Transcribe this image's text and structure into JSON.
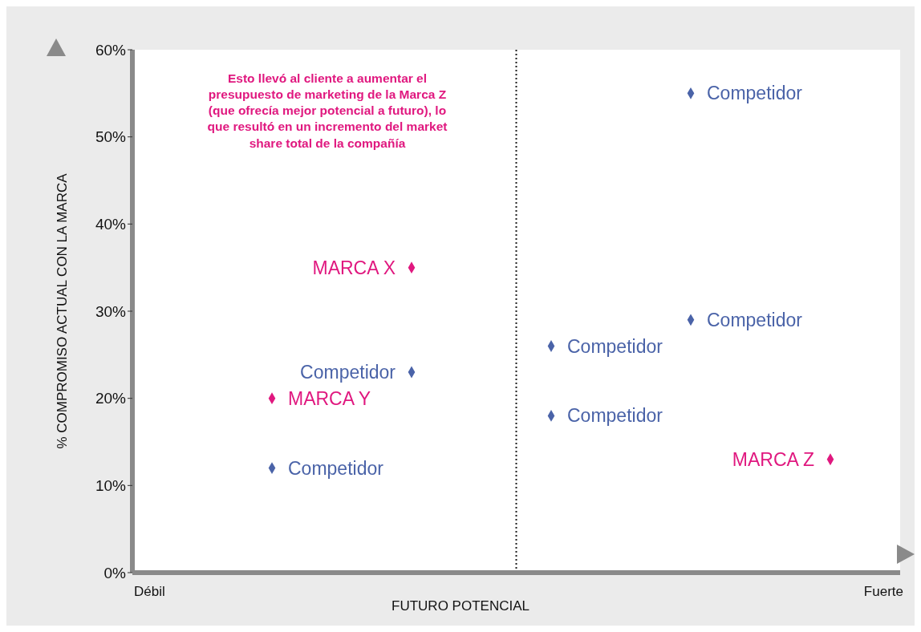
{
  "chart_data": {
    "type": "scatter",
    "ylabel": "% COMPROMISO ACTUAL  CON LA MARCA",
    "xlabel": "FUTURO POTENCIAL",
    "marker": "diamond",
    "grid": false,
    "legend": false,
    "categories": [
      null,
      null,
      null,
      null,
      null
    ],
    "ylim": [
      0,
      60
    ],
    "yticks": [
      {
        "value": 0,
        "label": "0%"
      },
      {
        "value": 10,
        "label": "10%"
      },
      {
        "value": 20,
        "label": "20%"
      },
      {
        "value": 30,
        "label": "30%"
      },
      {
        "value": 40,
        "label": "40%"
      },
      {
        "value": 50,
        "label": "50%"
      },
      {
        "value": 60,
        "label": "60%"
      }
    ],
    "series": [
      {
        "color": "#4a63a8",
        "values": [
          12,
          23,
          26,
          55,
          null
        ],
        "value_labels": [
          "Competidor",
          "Competidor",
          "Competidor",
          "Competidor",
          null
        ]
      },
      {
        "color": "#4a63a8",
        "values": [
          null,
          null,
          18,
          29,
          null
        ],
        "value_labels": [
          null,
          null,
          "Competidor",
          "Competidor",
          null
        ]
      },
      {
        "color": "#e0187f",
        "values": [
          20,
          35,
          null,
          null,
          13
        ],
        "value_labels": [
          "MARCA Y",
          "MARCA X",
          null,
          null,
          "MARCA Z"
        ]
      }
    ],
    "annotations": [
      "Esto llevó al cliente a aumentar el presupuesto de marketing de la Marca Z (que ofrecía mejor potencial a futuro), lo que resultó en un incremento del market share total de la compañía",
      "Débil",
      "Fuerte"
    ]
  }
}
